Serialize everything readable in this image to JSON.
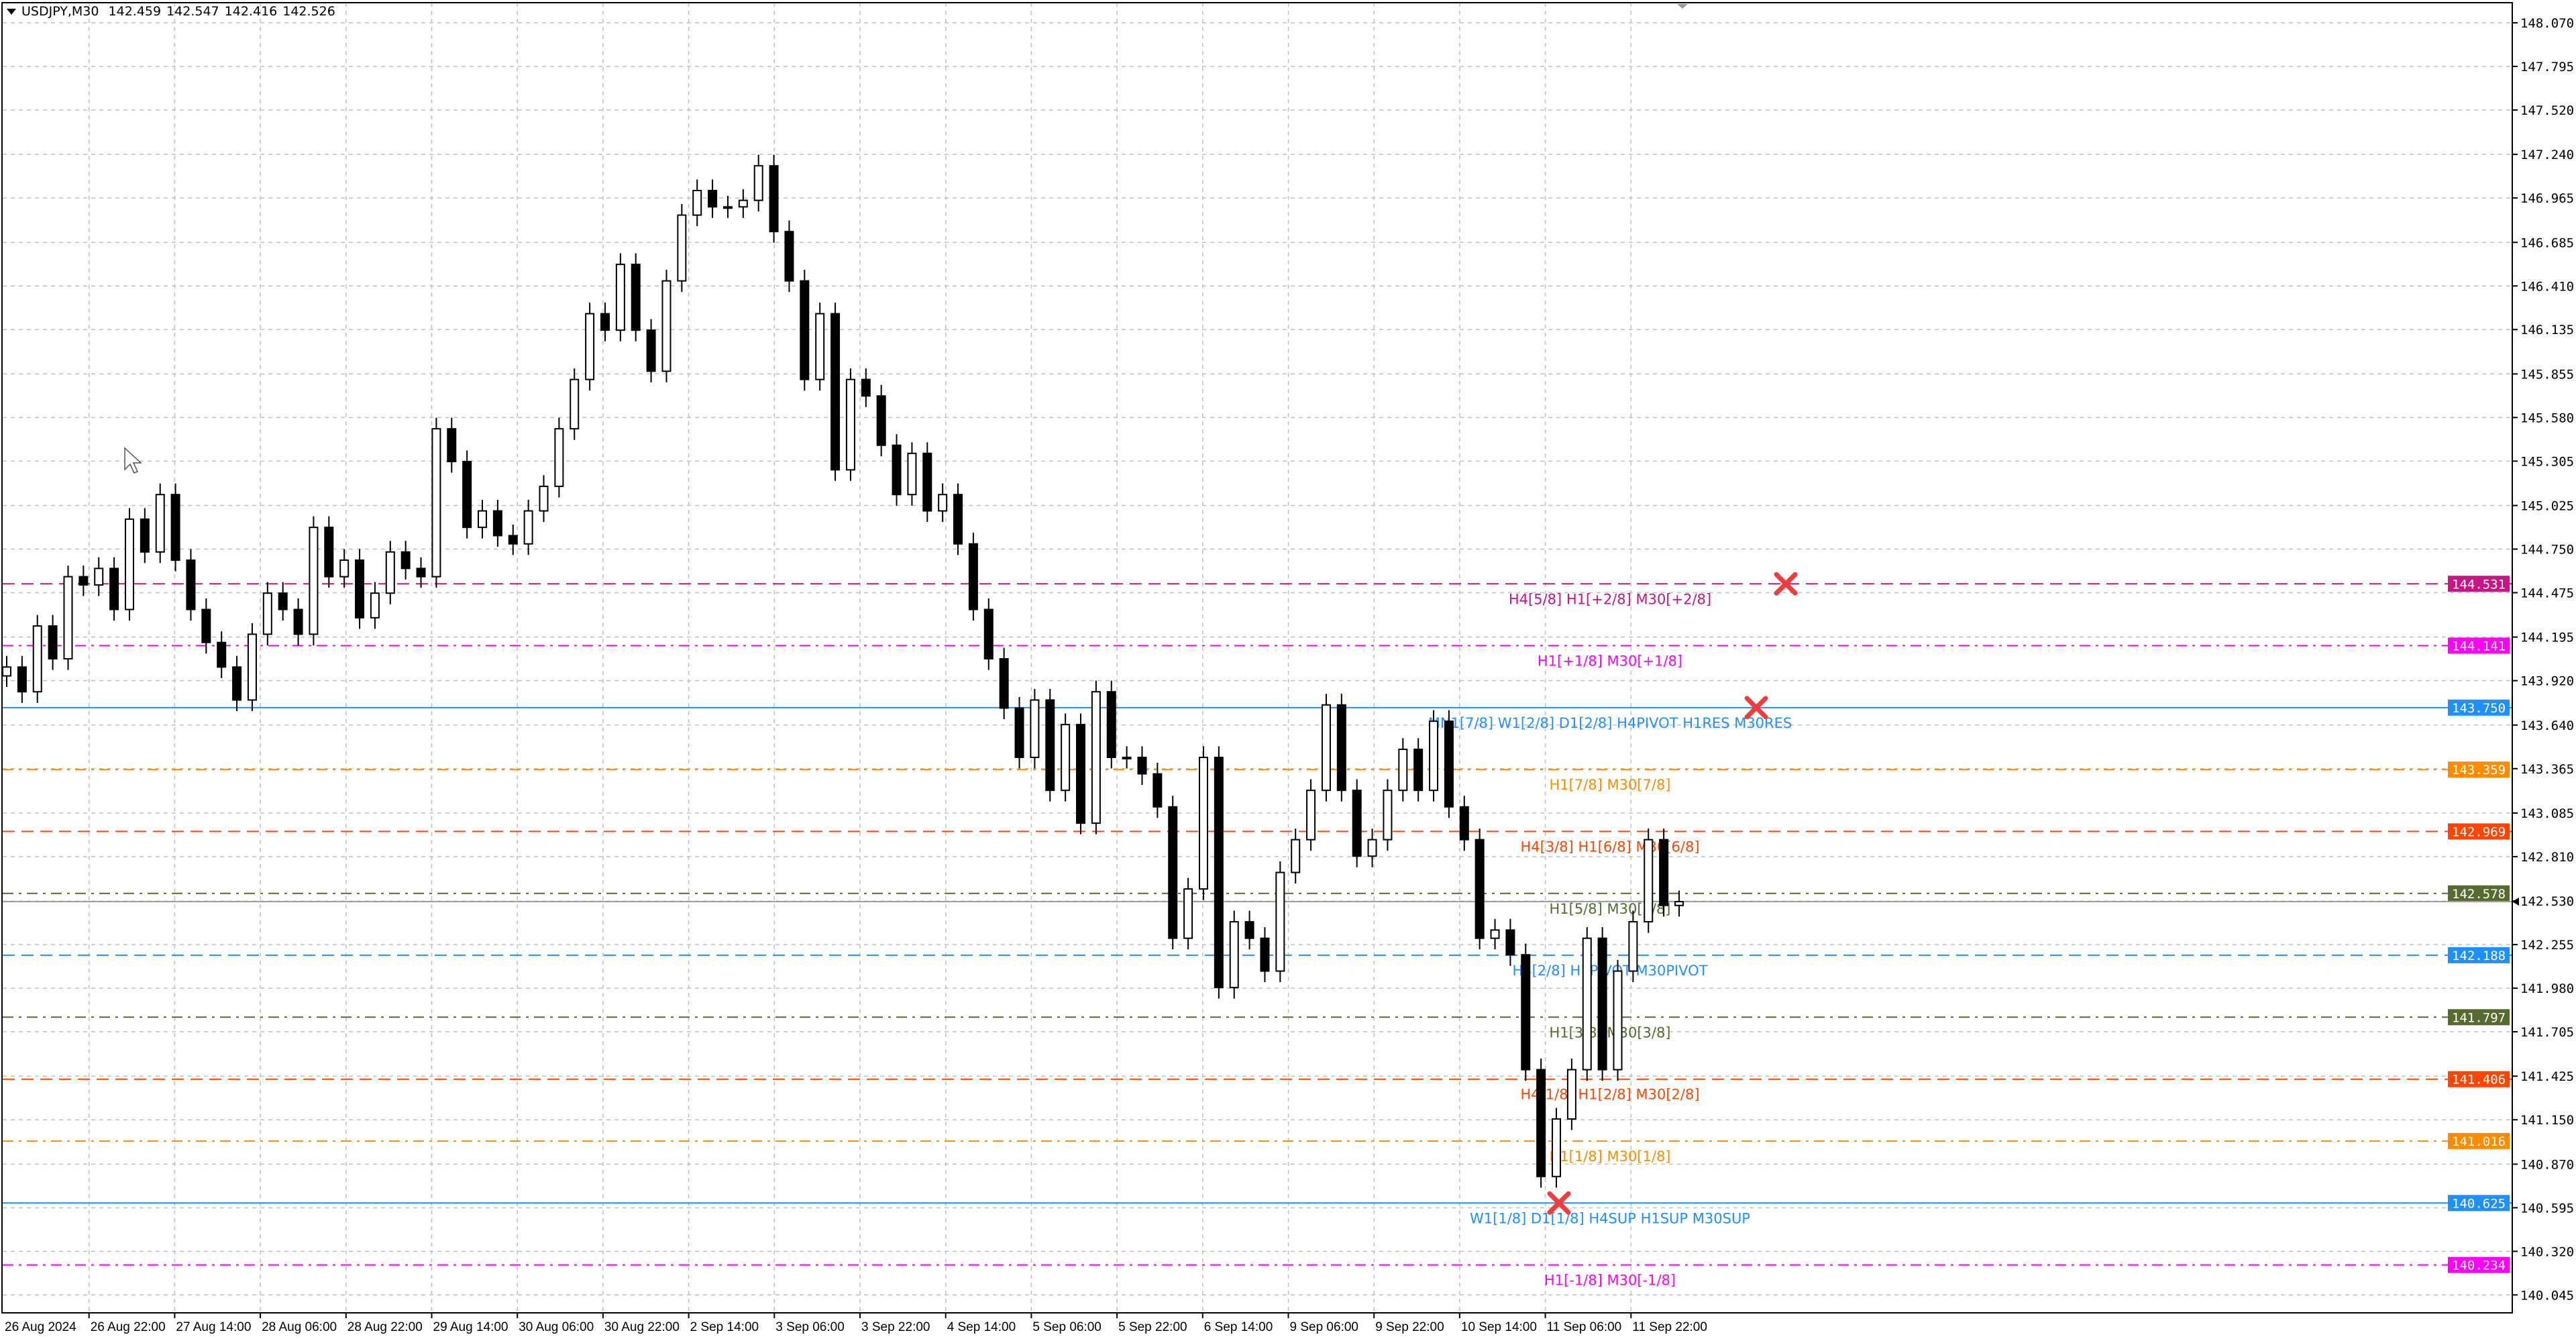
{
  "header": {
    "symbol": "USDJPY,M30",
    "open": "142.459",
    "high": "142.547",
    "low": "142.416",
    "close": "142.526"
  },
  "chart_data": {
    "type": "candlestick",
    "symbol": "USDJPY",
    "timeframe": "M30",
    "ylim": [
      140.045,
      148.07
    ],
    "grid": true,
    "y_ticks": [
      "148.070",
      "147.795",
      "147.520",
      "147.240",
      "146.965",
      "146.685",
      "146.410",
      "146.135",
      "145.855",
      "145.580",
      "145.305",
      "145.025",
      "144.750",
      "144.475",
      "144.195",
      "143.920",
      "143.640",
      "143.365",
      "143.085",
      "142.810",
      "142.530",
      "142.255",
      "141.980",
      "141.705",
      "141.425",
      "141.150",
      "140.870",
      "140.595",
      "140.320",
      "140.045"
    ],
    "x_ticks": [
      "26 Aug 2024",
      "26 Aug 22:00",
      "27 Aug 14:00",
      "28 Aug 06:00",
      "28 Aug 22:00",
      "29 Aug 14:00",
      "30 Aug 06:00",
      "30 Aug 22:00",
      "2 Sep 14:00",
      "3 Sep 06:00",
      "3 Sep 22:00",
      "4 Sep 14:00",
      "5 Sep 06:00",
      "5 Sep 22:00",
      "6 Sep 14:00",
      "9 Sep 06:00",
      "9 Sep 22:00",
      "10 Sep 14:00",
      "11 Sep 06:00",
      "11 Sep 22:00"
    ],
    "first_open": 143.95,
    "closes_approx": [
      144.006,
      143.85,
      144.265,
      144.058,
      144.576,
      144.524,
      144.628,
      144.369,
      144.939,
      144.732,
      145.094,
      144.68,
      144.369,
      144.161,
      144.006,
      143.798,
      144.213,
      144.472,
      144.369,
      144.213,
      144.887,
      144.576,
      144.68,
      144.317,
      144.472,
      144.732,
      144.628,
      144.576,
      145.509,
      145.302,
      144.887,
      144.991,
      144.835,
      144.783,
      144.991,
      145.146,
      145.509,
      145.82,
      146.235,
      146.131,
      146.546,
      146.131,
      145.872,
      146.442,
      146.857,
      147.012,
      146.909,
      146.909,
      146.95,
      147.168,
      146.753,
      146.442,
      145.82,
      146.235,
      145.25,
      145.82,
      145.716,
      145.405,
      145.094,
      145.354,
      144.991,
      145.094,
      144.783,
      144.369,
      144.058,
      143.747,
      143.436,
      143.798,
      143.228,
      143.643,
      143.021,
      143.85,
      143.436,
      143.436,
      143.332,
      143.124,
      142.295,
      142.606,
      143.436,
      141.984,
      142.399,
      142.295,
      142.088,
      142.71,
      142.917,
      143.228,
      143.767,
      143.228,
      142.813,
      142.917,
      143.228,
      143.487,
      143.228,
      143.664,
      143.124,
      142.917,
      142.295,
      142.347,
      142.191,
      141.466,
      140.792,
      141.155,
      141.466,
      142.295,
      141.466,
      142.088,
      142.399,
      142.917,
      142.502,
      142.526
    ],
    "bid": 142.526,
    "levels": [
      {
        "price": 144.531,
        "price_label": "144.531",
        "label": "H4[5/8] H1[+2/8] M30[+2/8]",
        "color": "#C71585",
        "style": "dash",
        "cross": true
      },
      {
        "price": 144.141,
        "price_label": "144.141",
        "label": "H1[+1/8] M30[+1/8]",
        "color": "#FF00FF",
        "style": "dashdot"
      },
      {
        "price": 143.75,
        "price_label": "143.750",
        "label": "MN1[7/8] W1[2/8] D1[2/8] H4PIVOT H1RES M30RES",
        "color": "#1E90FF",
        "style": "solid",
        "cross": true
      },
      {
        "price": 143.359,
        "price_label": "143.359",
        "label": "H1[7/8] M30[7/8]",
        "color": "#FF8C00",
        "style": "dashdot"
      },
      {
        "price": 142.969,
        "price_label": "142.969",
        "label": "H4[3/8] H1[6/8] M30[6/8]",
        "color": "#FF4500",
        "style": "dash"
      },
      {
        "price": 142.578,
        "price_label": "142.578",
        "label": "H1[5/8] M30[5/8]",
        "color": "#556B2F",
        "style": "dashdot"
      },
      {
        "price": 142.188,
        "price_label": "142.188",
        "label": "H4[2/8] H1PIVOT M30PIVOT",
        "color": "#1E90FF",
        "style": "dash"
      },
      {
        "price": 141.797,
        "price_label": "141.797",
        "label": "H1[3/8] M30[3/8]",
        "color": "#556B2F",
        "style": "dashdot"
      },
      {
        "price": 141.406,
        "price_label": "141.406",
        "label": "H4[1/8] H1[2/8] M30[2/8]",
        "color": "#FF4500",
        "style": "dash"
      },
      {
        "price": 141.016,
        "price_label": "141.016",
        "label": "H1[1/8] M30[1/8]",
        "color": "#FF8C00",
        "style": "dashdot"
      },
      {
        "price": 140.625,
        "price_label": "140.625",
        "label": "W1[1/8] D1[1/8] H4SUP H1SUP M30SUP",
        "color": "#1E90FF",
        "style": "solid",
        "cross": true
      },
      {
        "price": 140.234,
        "price_label": "140.234",
        "label": "H1[-1/8] M30[-1/8]",
        "color": "#FF00FF",
        "style": "dashdot"
      }
    ],
    "colors": {
      "bull_body": "#FFFFFF",
      "bear_body": "#000000",
      "grid": "#C0C0C0",
      "cross": "#F03C3C"
    }
  }
}
